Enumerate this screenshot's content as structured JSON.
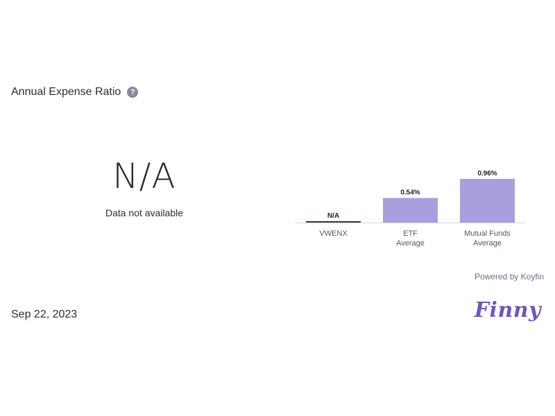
{
  "header": {
    "title": "Annual Expense Ratio",
    "help_icon": "question-circle-icon",
    "help_icon_glyph": "?"
  },
  "summary": {
    "value": "N/A",
    "subtitle": "Data not available"
  },
  "chart_data": {
    "type": "bar",
    "categories": [
      [
        "VWENX"
      ],
      [
        "ETF",
        "Average"
      ],
      [
        "Mutual Funds",
        "Average"
      ]
    ],
    "values": [
      null,
      0.54,
      0.96
    ],
    "data_labels": [
      "N/A",
      "0.54%",
      "0.96%"
    ],
    "unit": "%",
    "ylim": [
      0,
      0.96
    ],
    "grid": false,
    "colors": {
      "bar": "#a8a0de",
      "na_bar": "#3a3358",
      "axis": "#d4d4d8",
      "label": "#1e1e28",
      "tick": "#555566"
    }
  },
  "footer": {
    "powered_prefix": "Powered by ",
    "powered_brand": "Koyfin",
    "date": "Sep 22, 2023",
    "logo_text": "Finny"
  }
}
